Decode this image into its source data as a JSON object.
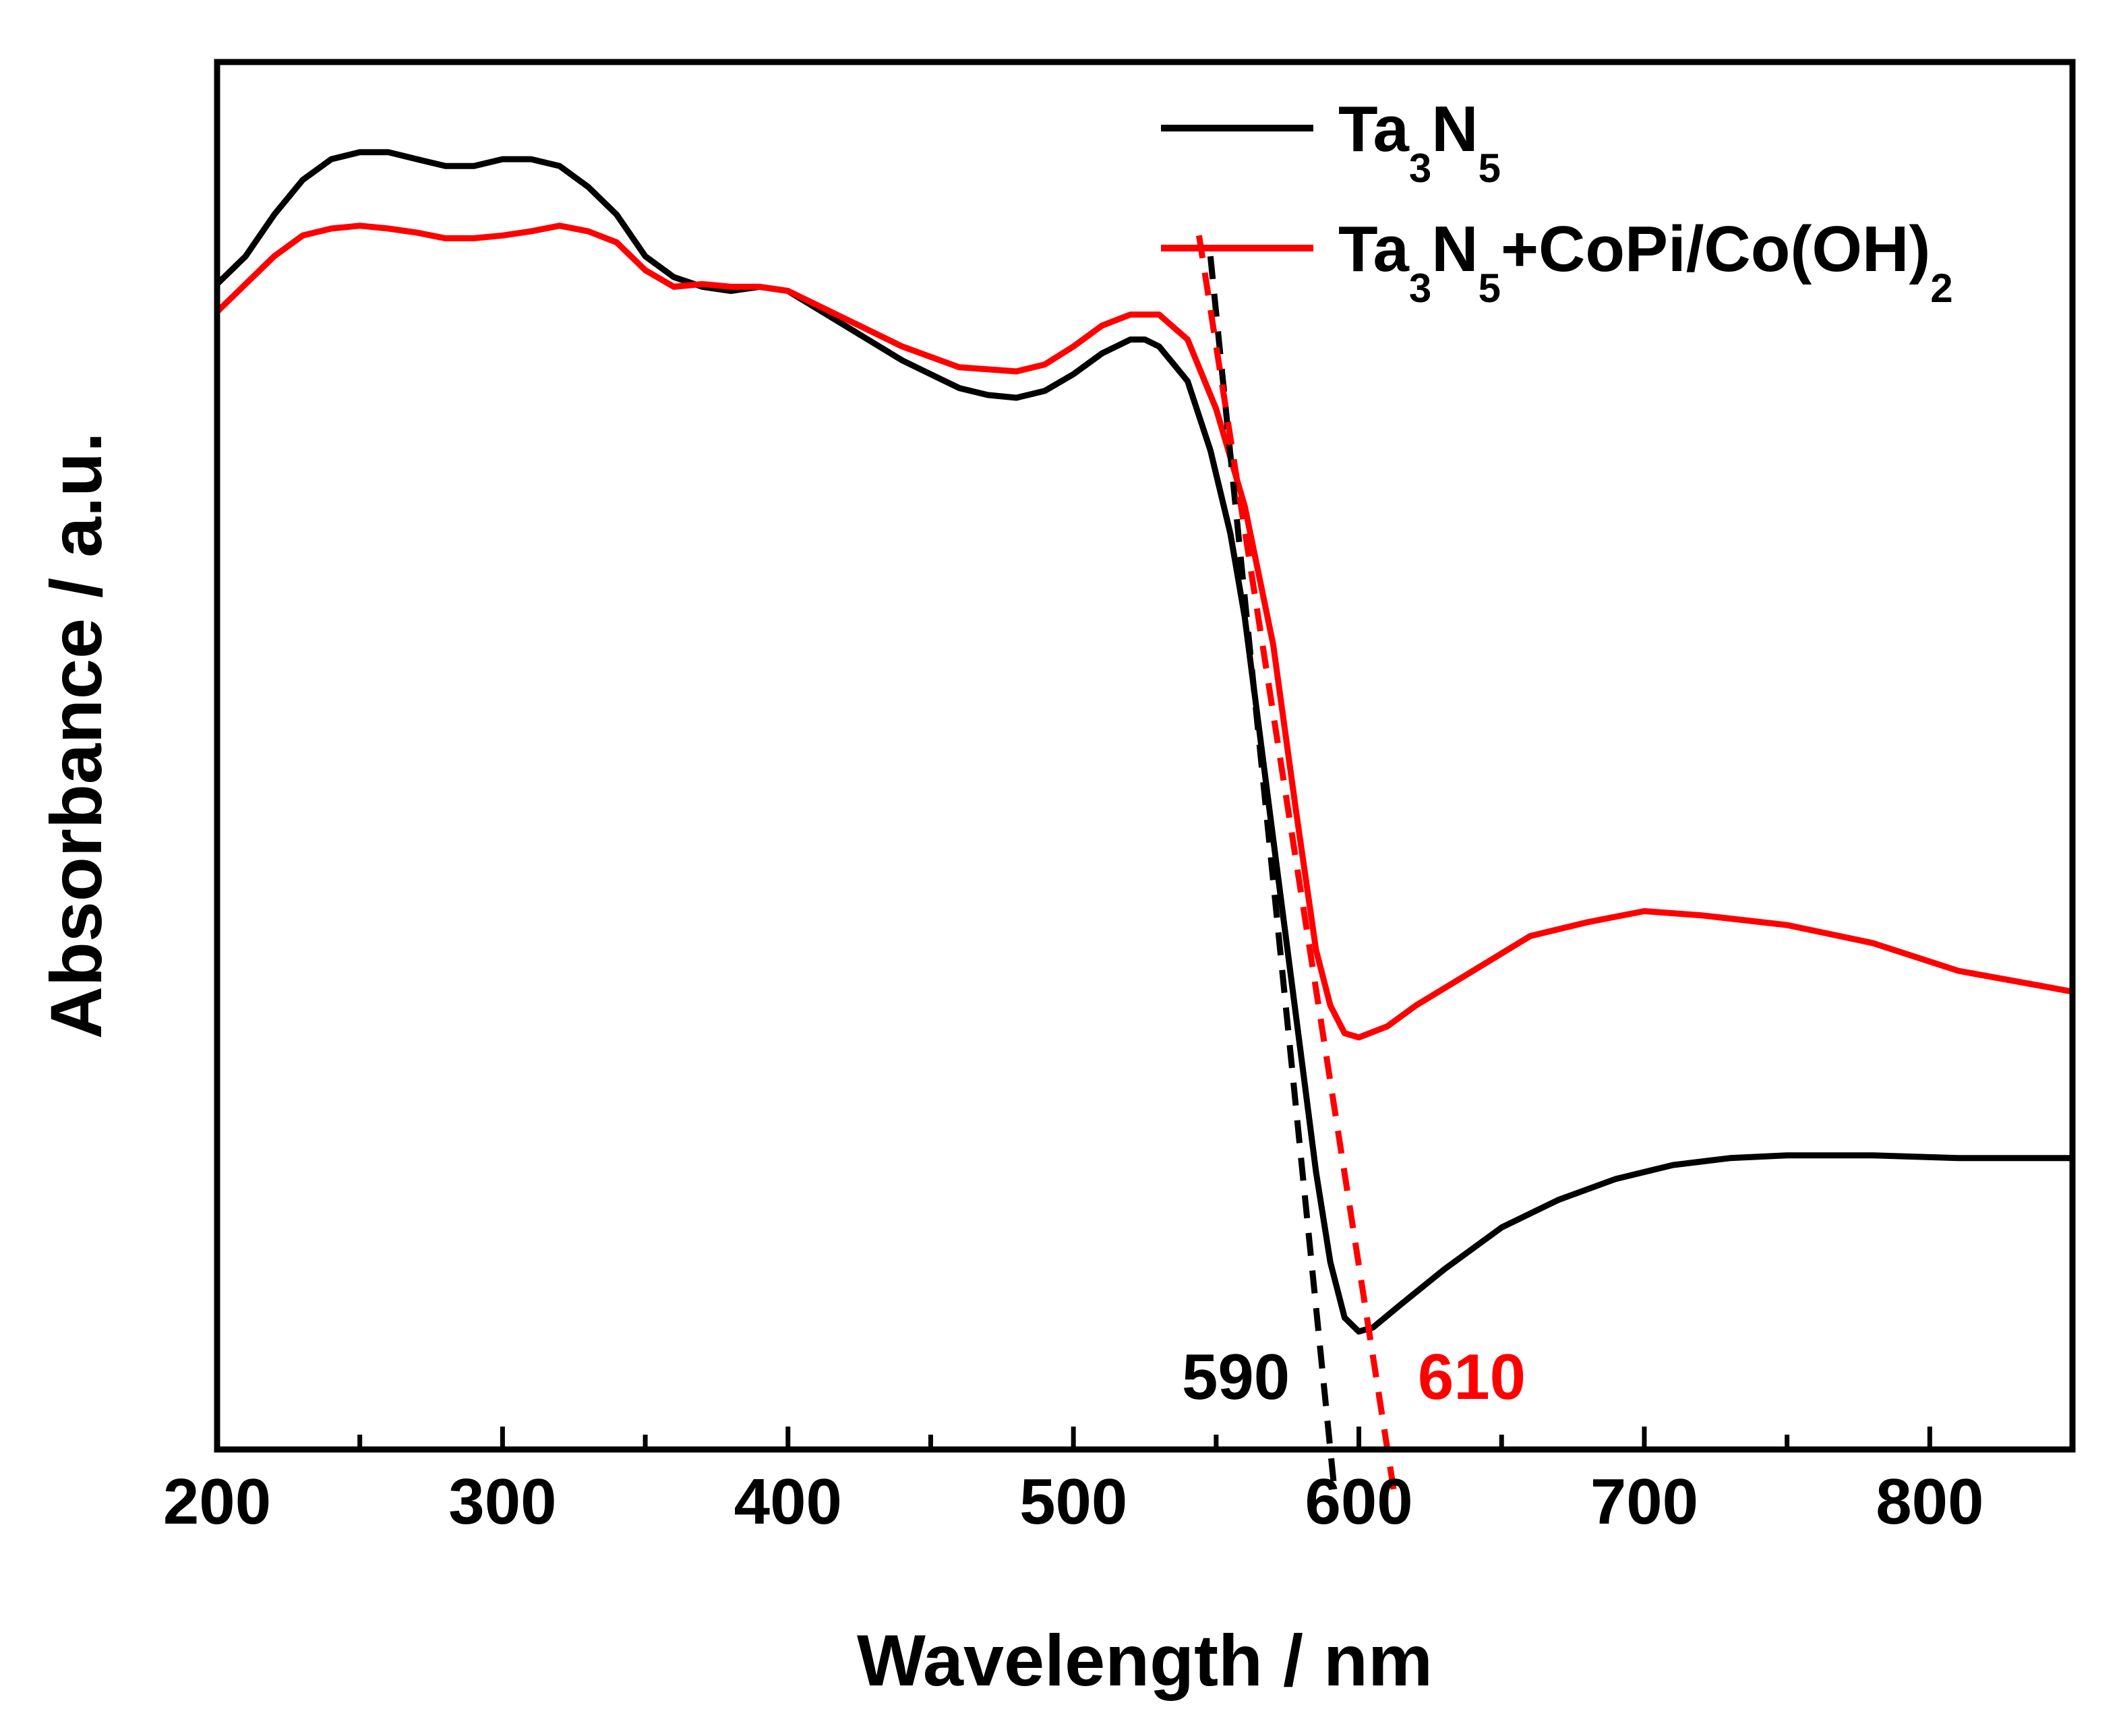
{
  "chart_data": {
    "type": "line",
    "title": "",
    "xlabel": "Wavelength / nm",
    "ylabel": "Absorbance / a.u.",
    "xlim": [
      200,
      850
    ],
    "ylim": [
      0,
      1
    ],
    "x_ticks": [
      "200",
      "300",
      "400",
      "500",
      "600",
      "700",
      "800"
    ],
    "y_ticks_labeled": false,
    "grid": false,
    "legend": {
      "placement": "top-right"
    },
    "series": [
      {
        "name": "Ta3N5",
        "legend_main": "Ta",
        "legend_parts": [
          {
            "text": "Ta",
            "sub": false
          },
          {
            "text": "3",
            "sub": true
          },
          {
            "text": "N",
            "sub": false
          },
          {
            "text": "5",
            "sub": true
          }
        ],
        "color": "#000000",
        "points": [
          [
            200,
            0.84
          ],
          [
            210,
            0.86
          ],
          [
            220,
            0.89
          ],
          [
            230,
            0.915
          ],
          [
            240,
            0.93
          ],
          [
            250,
            0.935
          ],
          [
            260,
            0.935
          ],
          [
            270,
            0.93
          ],
          [
            280,
            0.925
          ],
          [
            290,
            0.925
          ],
          [
            300,
            0.93
          ],
          [
            310,
            0.93
          ],
          [
            320,
            0.925
          ],
          [
            330,
            0.91
          ],
          [
            340,
            0.89
          ],
          [
            350,
            0.86
          ],
          [
            360,
            0.845
          ],
          [
            370,
            0.838
          ],
          [
            380,
            0.835
          ],
          [
            390,
            0.838
          ],
          [
            400,
            0.835
          ],
          [
            420,
            0.81
          ],
          [
            440,
            0.785
          ],
          [
            460,
            0.765
          ],
          [
            470,
            0.76
          ],
          [
            480,
            0.758
          ],
          [
            490,
            0.763
          ],
          [
            500,
            0.775
          ],
          [
            510,
            0.79
          ],
          [
            520,
            0.8
          ],
          [
            525,
            0.8
          ],
          [
            530,
            0.795
          ],
          [
            540,
            0.77
          ],
          [
            548,
            0.72
          ],
          [
            555,
            0.66
          ],
          [
            560,
            0.6
          ],
          [
            565,
            0.52
          ],
          [
            570,
            0.44
          ],
          [
            575,
            0.36
          ],
          [
            580,
            0.28
          ],
          [
            585,
            0.2
          ],
          [
            590,
            0.135
          ],
          [
            595,
            0.095
          ],
          [
            600,
            0.085
          ],
          [
            605,
            0.088
          ],
          [
            615,
            0.105
          ],
          [
            630,
            0.13
          ],
          [
            650,
            0.16
          ],
          [
            670,
            0.18
          ],
          [
            690,
            0.195
          ],
          [
            710,
            0.205
          ],
          [
            730,
            0.21
          ],
          [
            750,
            0.212
          ],
          [
            780,
            0.212
          ],
          [
            810,
            0.21
          ],
          [
            850,
            0.21
          ]
        ]
      },
      {
        "name": "Ta3N5+CoPi/Co(OH)2",
        "legend_parts": [
          {
            "text": "Ta",
            "sub": false
          },
          {
            "text": "3",
            "sub": true
          },
          {
            "text": "N",
            "sub": false
          },
          {
            "text": "5",
            "sub": true
          },
          {
            "text": "+CoPi/Co(OH)",
            "sub": false
          },
          {
            "text": "2",
            "sub": true
          }
        ],
        "color": "#ff0000",
        "points": [
          [
            200,
            0.82
          ],
          [
            210,
            0.84
          ],
          [
            220,
            0.86
          ],
          [
            230,
            0.875
          ],
          [
            240,
            0.88
          ],
          [
            250,
            0.882
          ],
          [
            260,
            0.88
          ],
          [
            270,
            0.877
          ],
          [
            280,
            0.873
          ],
          [
            290,
            0.873
          ],
          [
            300,
            0.875
          ],
          [
            310,
            0.878
          ],
          [
            320,
            0.882
          ],
          [
            330,
            0.878
          ],
          [
            340,
            0.87
          ],
          [
            350,
            0.85
          ],
          [
            360,
            0.838
          ],
          [
            370,
            0.84
          ],
          [
            380,
            0.838
          ],
          [
            390,
            0.838
          ],
          [
            400,
            0.835
          ],
          [
            420,
            0.815
          ],
          [
            440,
            0.795
          ],
          [
            460,
            0.78
          ],
          [
            480,
            0.777
          ],
          [
            490,
            0.782
          ],
          [
            500,
            0.795
          ],
          [
            510,
            0.81
          ],
          [
            520,
            0.818
          ],
          [
            530,
            0.818
          ],
          [
            540,
            0.8
          ],
          [
            550,
            0.75
          ],
          [
            560,
            0.68
          ],
          [
            570,
            0.58
          ],
          [
            578,
            0.46
          ],
          [
            585,
            0.36
          ],
          [
            590,
            0.32
          ],
          [
            595,
            0.3
          ],
          [
            600,
            0.297
          ],
          [
            610,
            0.305
          ],
          [
            620,
            0.32
          ],
          [
            640,
            0.345
          ],
          [
            660,
            0.37
          ],
          [
            680,
            0.38
          ],
          [
            700,
            0.388
          ],
          [
            720,
            0.385
          ],
          [
            750,
            0.378
          ],
          [
            780,
            0.365
          ],
          [
            810,
            0.345
          ],
          [
            850,
            0.33
          ]
        ]
      }
    ],
    "annotations": [
      {
        "text": "590",
        "x": 590,
        "color": "#000000"
      },
      {
        "text": "610",
        "x": 610,
        "color": "#ff0000"
      }
    ],
    "tangent_lines": [
      {
        "color": "#000000",
        "from": [
          548,
          0.86
        ],
        "to": [
          590,
          0.0
        ]
      },
      {
        "color": "#ff0000",
        "from": [
          544,
          0.875
        ],
        "to": [
          610,
          0.0
        ]
      }
    ]
  }
}
